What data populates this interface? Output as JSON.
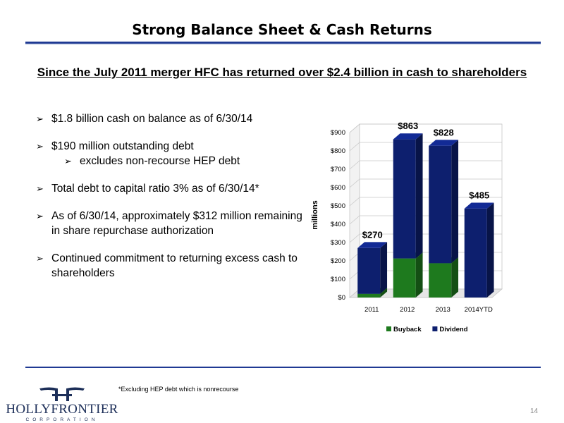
{
  "slide": {
    "title": "Strong Balance Sheet & Cash Returns",
    "subtitle": "Since the July 2011 merger HFC has returned over $2.4 billion in cash to shareholders",
    "bullets": [
      {
        "text": "$1.8 billion cash on balance as of 6/30/14",
        "level": 1
      },
      {
        "text": "$190 million outstanding debt",
        "level": 1
      },
      {
        "text": "excludes non-recourse HEP debt",
        "level": 2
      },
      {
        "text": "Total debt to capital ratio 3% as of 6/30/14*",
        "level": 1
      },
      {
        "text": "As of 6/30/14, approximately $312 million remaining in share repurchase authorization",
        "level": 1
      },
      {
        "text": "Continued commitment to returning excess cash to shareholders",
        "level": 1
      }
    ],
    "footnote": "*Excluding HEP debt which is nonrecourse",
    "page_number": "14",
    "logo": {
      "name": "HOLLYFRONTIER",
      "sub": "CORPORATION"
    },
    "bullet_glyph": "➢"
  },
  "chart_data": {
    "type": "bar",
    "stacked": true,
    "categories": [
      "2011",
      "2012",
      "2013",
      "2014YTD"
    ],
    "series": [
      {
        "name": "Buyback",
        "values": [
          20,
          213,
          187,
          0
        ],
        "color": "#1e7a1e"
      },
      {
        "name": "Dividend",
        "values": [
          250,
          650,
          641,
          485
        ],
        "color": "#0d1f6e"
      }
    ],
    "totals": [
      "$270",
      "$863",
      "$828",
      "$485"
    ],
    "ylabel": "millions",
    "ylim": [
      0,
      900
    ],
    "yticks": [
      "$0",
      "$100",
      "$200",
      "$300",
      "$400",
      "$500",
      "$600",
      "$700",
      "$800",
      "$900"
    ],
    "grid": true,
    "legend": "bottom"
  }
}
